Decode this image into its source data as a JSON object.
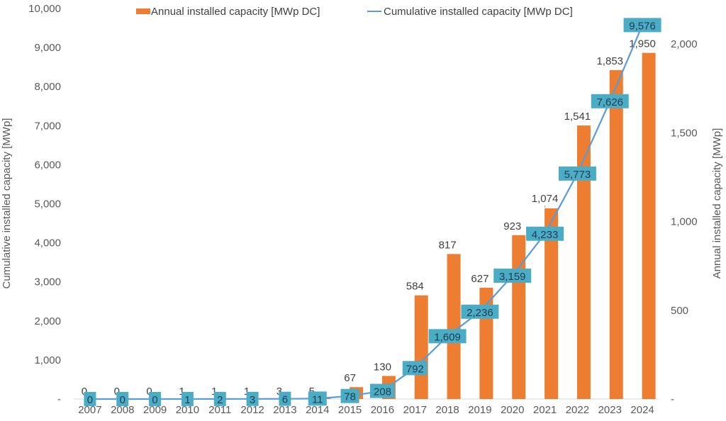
{
  "chart_data": {
    "type": "bar+line",
    "title": "",
    "categories": [
      "2007",
      "2008",
      "2009",
      "2010",
      "2011",
      "2012",
      "2013",
      "2014",
      "2015",
      "2016",
      "2017",
      "2018",
      "2019",
      "2020",
      "2021",
      "2022",
      "2023",
      "2024"
    ],
    "series": [
      {
        "name": "Annual installed capacity [MWp DC]",
        "type": "bar",
        "axis": "right",
        "color": "#ED7D31",
        "values": [
          0,
          0,
          0,
          1,
          1,
          1,
          3,
          5,
          67,
          130,
          584,
          817,
          627,
          923,
          1074,
          1541,
          1853,
          1950
        ],
        "labels": [
          "0",
          "0",
          "0",
          "1",
          "1",
          "1",
          "3",
          "5",
          "67",
          "130",
          "584",
          "817",
          "627",
          "923",
          "1,074",
          "1,541",
          "1,853",
          "1,950"
        ]
      },
      {
        "name": "Cumulative installed capacity [MWp DC]",
        "type": "line",
        "axis": "left",
        "color": "#5B9BD5",
        "label_bg": "#4BACC6",
        "values": [
          0,
          0,
          0,
          1,
          2,
          3,
          6,
          11,
          78,
          208,
          792,
          1609,
          2236,
          3159,
          4233,
          5773,
          7626,
          9576
        ],
        "labels": [
          "0",
          "0",
          "0",
          "1",
          "2",
          "3",
          "6",
          "11",
          "78",
          "208",
          "792",
          "1,609",
          "2,236",
          "3,159",
          "4,233",
          "5,773",
          "7,626",
          "9,576"
        ]
      }
    ],
    "left_axis": {
      "title": "Cumulative installed capacity [MWp]",
      "range": [
        0,
        10000
      ],
      "ticks": [
        0,
        1000,
        2000,
        3000,
        4000,
        5000,
        6000,
        7000,
        8000,
        9000,
        10000
      ],
      "tick_labels": [
        "-",
        "1,000",
        "2,000",
        "3,000",
        "4,000",
        "5,000",
        "6,000",
        "7,000",
        "8,000",
        "9,000",
        "10,000"
      ]
    },
    "right_axis": {
      "title": "Annual installed capacity [MWp]",
      "range": [
        0,
        2200
      ],
      "ticks": [
        0,
        500,
        1000,
        1500,
        2000
      ],
      "tick_labels": [
        "-",
        "500",
        "1,000",
        "1,500",
        "2,000"
      ]
    },
    "xlabel": "",
    "grid": false,
    "legend": {
      "position": "top",
      "entries": [
        "Annual installed capacity [MWp DC]",
        "Cumulative installed capacity [MWp DC]"
      ]
    }
  }
}
